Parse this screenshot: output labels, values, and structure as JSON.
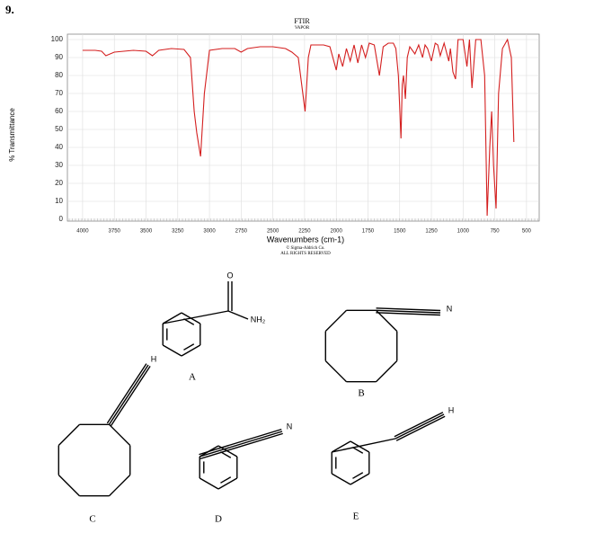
{
  "question_number": "9.",
  "chart_data": {
    "type": "line",
    "title": "FTIR",
    "subtitle": "VAPOR",
    "x_label": "Wavenumbers (cm-1)",
    "y_label": "% Transmittance",
    "copyright": "© Sigma-Aldrich Co.",
    "rights": "ALL RIGHTS RESERVED",
    "xlim": [
      4120,
      400
    ],
    "ylim": [
      -1,
      103
    ],
    "xticks": [
      4000,
      3750,
      3500,
      3250,
      3000,
      2750,
      2500,
      2250,
      2000,
      1750,
      1500,
      1250,
      1000,
      750,
      500
    ],
    "yticks": [
      0,
      10,
      20,
      30,
      40,
      50,
      60,
      70,
      80,
      90,
      100
    ],
    "grid": true,
    "series": [
      {
        "color": "#d41f1f",
        "x": [
          4000,
          3900,
          3850,
          3817,
          3750,
          3600,
          3500,
          3450,
          3400,
          3300,
          3200,
          3150,
          3120,
          3100,
          3070,
          3040,
          3000,
          2900,
          2800,
          2750,
          2700,
          2600,
          2500,
          2400,
          2350,
          2300,
          2246,
          2220,
          2200,
          2100,
          2050,
          2000,
          1980,
          1950,
          1920,
          1890,
          1860,
          1830,
          1800,
          1770,
          1740,
          1700,
          1660,
          1630,
          1590,
          1550,
          1530,
          1510,
          1490,
          1480,
          1470,
          1455,
          1440,
          1420,
          1380,
          1350,
          1320,
          1300,
          1280,
          1250,
          1220,
          1200,
          1180,
          1150,
          1113,
          1100,
          1080,
          1060,
          1040,
          1000,
          970,
          950,
          930,
          900,
          860,
          830,
          810,
          790,
          775,
          760,
          740,
          720,
          690,
          650,
          620,
          600
        ],
        "values": [
          94,
          94,
          93.5,
          91,
          93,
          94,
          93.5,
          91,
          94,
          95,
          94.5,
          90,
          60,
          48,
          35,
          70,
          94,
          95,
          95,
          93,
          95,
          96,
          96,
          95,
          93,
          90,
          60,
          90,
          97,
          97,
          96,
          83,
          92,
          85,
          95,
          88,
          97,
          87,
          97,
          90,
          98,
          97,
          80,
          96,
          98,
          98,
          95,
          80,
          45,
          75,
          80,
          67,
          90,
          96,
          92,
          97,
          90,
          97,
          95,
          88,
          98,
          97,
          91,
          98,
          88,
          95,
          82,
          78,
          100,
          100,
          85,
          100,
          73,
          100,
          100,
          80,
          2,
          40,
          60,
          30,
          6,
          70,
          95,
          100,
          90,
          43
        ]
      }
    ]
  },
  "structures": [
    {
      "label": "A",
      "atoms": [
        "O",
        "NH₂"
      ]
    },
    {
      "label": "B",
      "atoms": [
        "N"
      ]
    },
    {
      "label": "C",
      "atoms": [
        "H"
      ]
    },
    {
      "label": "D",
      "atoms": [
        "N"
      ]
    },
    {
      "label": "E",
      "atoms": [
        "H"
      ]
    }
  ]
}
